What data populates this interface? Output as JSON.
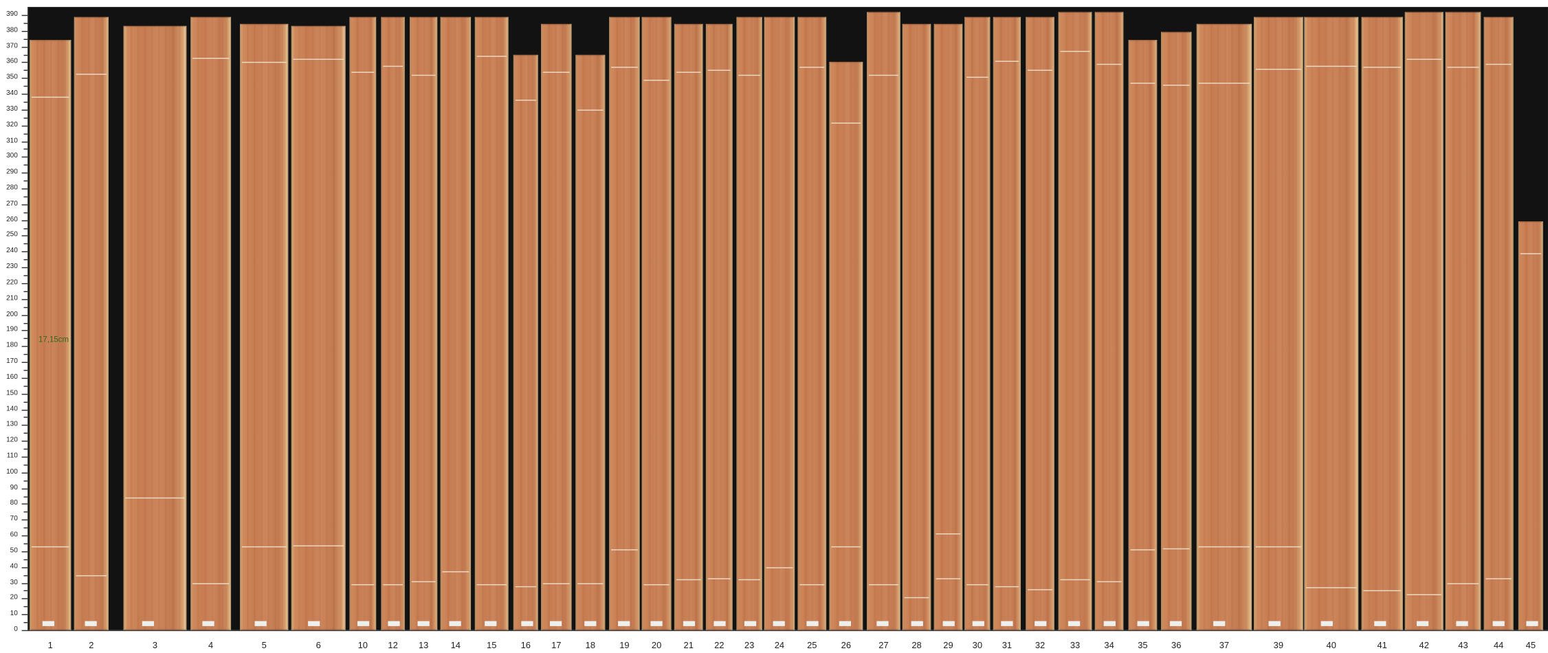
{
  "axis": {
    "unit": "cm",
    "min": 0,
    "max": 390,
    "major_step": 10,
    "minor_step": 5
  },
  "measurement_label": "17,15cm",
  "colors": {
    "background": "#121212",
    "wood": "#c77c52",
    "sapwood": "#e6c28f",
    "measure_text": "#2f6b1f"
  },
  "boards": [
    {
      "label": "1",
      "length_cm": 374,
      "marks_cm": [
        338,
        53
      ]
    },
    {
      "label": "2",
      "length_cm": 389,
      "marks_cm": [
        353,
        35
      ]
    },
    {
      "label": "3",
      "length_cm": 383,
      "marks_cm": [
        84
      ]
    },
    {
      "label": "4",
      "length_cm": 389,
      "marks_cm": [
        363,
        30
      ]
    },
    {
      "label": "5",
      "length_cm": 384,
      "marks_cm": [
        360,
        53
      ]
    },
    {
      "label": "6",
      "length_cm": 383,
      "marks_cm": [
        362,
        54
      ]
    },
    {
      "label": "10",
      "length_cm": 389,
      "marks_cm": [
        354,
        29
      ]
    },
    {
      "label": "12",
      "length_cm": 389,
      "marks_cm": [
        358,
        29
      ]
    },
    {
      "label": "13",
      "length_cm": 389,
      "marks_cm": [
        352,
        31
      ]
    },
    {
      "label": "14",
      "length_cm": 389,
      "marks_cm": [
        37
      ]
    },
    {
      "label": "15",
      "length_cm": 389,
      "marks_cm": [
        364,
        29
      ]
    },
    {
      "label": "16",
      "length_cm": 365,
      "marks_cm": [
        336,
        28
      ]
    },
    {
      "label": "17",
      "length_cm": 384,
      "marks_cm": [
        354,
        30
      ]
    },
    {
      "label": "18",
      "length_cm": 365,
      "marks_cm": [
        330,
        30
      ]
    },
    {
      "label": "19",
      "length_cm": 389,
      "marks_cm": [
        357,
        51
      ]
    },
    {
      "label": "20",
      "length_cm": 389,
      "marks_cm": [
        349,
        29
      ]
    },
    {
      "label": "21",
      "length_cm": 384,
      "marks_cm": [
        354,
        32
      ]
    },
    {
      "label": "22",
      "length_cm": 384,
      "marks_cm": [
        355,
        33
      ]
    },
    {
      "label": "23",
      "length_cm": 389,
      "marks_cm": [
        352,
        32
      ]
    },
    {
      "label": "24",
      "length_cm": 389,
      "marks_cm": [
        40
      ]
    },
    {
      "label": "25",
      "length_cm": 389,
      "marks_cm": [
        357,
        29
      ]
    },
    {
      "label": "26",
      "length_cm": 360,
      "marks_cm": [
        322,
        53
      ]
    },
    {
      "label": "27",
      "length_cm": 392,
      "marks_cm": [
        352,
        29
      ]
    },
    {
      "label": "28",
      "length_cm": 384,
      "marks_cm": [
        21
      ]
    },
    {
      "label": "29",
      "length_cm": 384,
      "marks_cm": [
        61,
        33
      ]
    },
    {
      "label": "30",
      "length_cm": 389,
      "marks_cm": [
        351,
        29
      ]
    },
    {
      "label": "31",
      "length_cm": 389,
      "marks_cm": [
        361,
        28
      ]
    },
    {
      "label": "32",
      "length_cm": 389,
      "marks_cm": [
        355,
        26
      ]
    },
    {
      "label": "33",
      "length_cm": 392,
      "marks_cm": [
        367,
        32
      ]
    },
    {
      "label": "34",
      "length_cm": 392,
      "marks_cm": [
        359,
        31
      ]
    },
    {
      "label": "35",
      "length_cm": 374,
      "marks_cm": [
        347,
        51
      ]
    },
    {
      "label": "36",
      "length_cm": 379,
      "marks_cm": [
        346,
        52
      ]
    },
    {
      "label": "37",
      "length_cm": 384,
      "marks_cm": [
        347,
        53
      ]
    },
    {
      "label": "39",
      "length_cm": 389,
      "marks_cm": [
        356,
        53
      ]
    },
    {
      "label": "40",
      "length_cm": 389,
      "marks_cm": [
        358,
        27
      ]
    },
    {
      "label": "41",
      "length_cm": 389,
      "marks_cm": [
        357,
        25
      ]
    },
    {
      "label": "42",
      "length_cm": 392,
      "marks_cm": [
        362,
        23
      ]
    },
    {
      "label": "43",
      "length_cm": 392,
      "marks_cm": [
        357,
        30
      ]
    },
    {
      "label": "44",
      "length_cm": 389,
      "marks_cm": [
        359,
        33
      ]
    },
    {
      "label": "45",
      "length_cm": 259,
      "marks_cm": [
        239
      ]
    }
  ]
}
